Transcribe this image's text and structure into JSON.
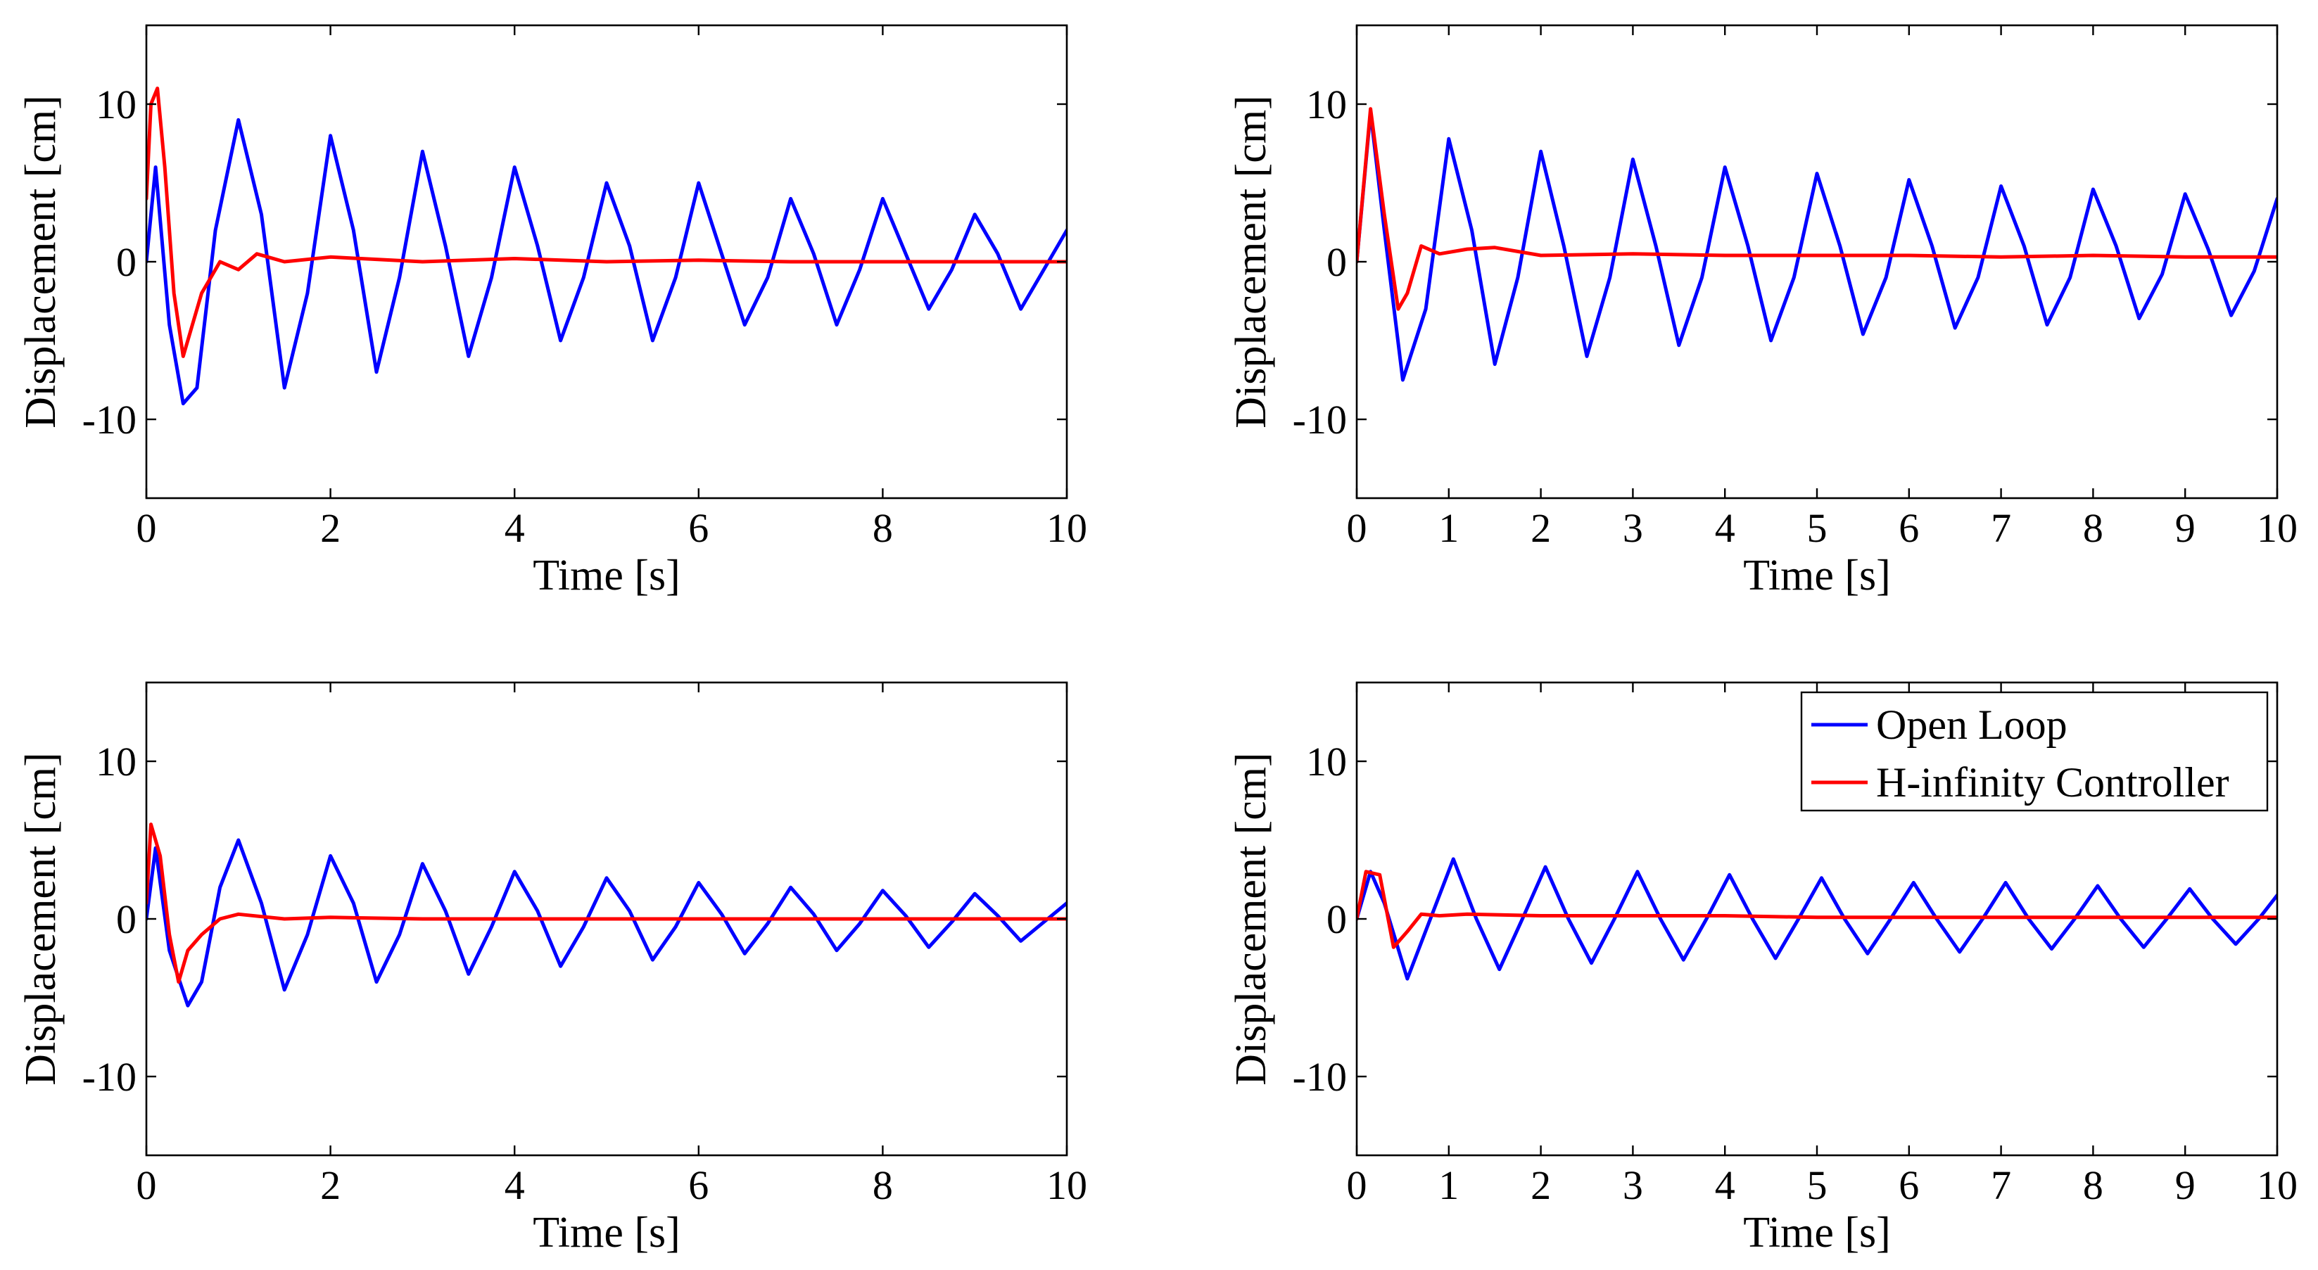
{
  "chart_data": [
    {
      "type": "line",
      "panel": "top-left",
      "xlabel": "Time [s]",
      "ylabel": "Displacement [cm]",
      "xlim": [
        0,
        10
      ],
      "ylim": [
        -15,
        15
      ],
      "xticks": [
        0,
        2,
        4,
        6,
        8,
        10
      ],
      "xtick_labels": [
        "0",
        "2",
        "4",
        "6",
        "8",
        "10"
      ],
      "yticks": [
        -10,
        0,
        10
      ],
      "ytick_labels": [
        "-10",
        "0",
        "10"
      ],
      "series": [
        {
          "name": "Open Loop",
          "color": "#0000ff",
          "x": [
            0,
            0.1,
            0.25,
            0.4,
            0.55,
            0.75,
            1.0,
            1.25,
            1.5,
            1.75,
            2.0,
            2.25,
            2.5,
            2.75,
            3.0,
            3.25,
            3.5,
            3.75,
            4.0,
            4.25,
            4.5,
            4.75,
            5.0,
            5.25,
            5.5,
            5.75,
            6.0,
            6.25,
            6.5,
            6.75,
            7.0,
            7.25,
            7.5,
            7.75,
            8.0,
            8.25,
            8.5,
            8.75,
            9.0,
            9.25,
            9.5,
            9.75,
            10.0
          ],
          "values": [
            0,
            6,
            -4,
            -9,
            -8,
            2,
            9,
            3,
            -8,
            -2,
            8,
            2,
            -7,
            -1,
            7,
            1,
            -6,
            -1,
            6,
            1,
            -5,
            -1,
            5,
            1,
            -5,
            -1,
            5,
            0.5,
            -4,
            -1,
            4,
            0.5,
            -4,
            -0.5,
            4,
            0.5,
            -3,
            -0.5,
            3,
            0.5,
            -3,
            -0.5,
            2
          ]
        },
        {
          "name": "H-infinity Controller",
          "color": "#ff0000",
          "x": [
            0,
            0.05,
            0.12,
            0.2,
            0.3,
            0.4,
            0.5,
            0.6,
            0.7,
            0.8,
            1.0,
            1.2,
            1.5,
            2.0,
            3.0,
            4.0,
            5.0,
            6.0,
            7.0,
            8.0,
            9.0,
            10.0
          ],
          "values": [
            4,
            10,
            11,
            6,
            -2,
            -6,
            -4,
            -2,
            -1,
            0,
            -0.5,
            0.5,
            0,
            0.3,
            0,
            0.2,
            0,
            0.1,
            0,
            0,
            0,
            0
          ]
        }
      ]
    },
    {
      "type": "line",
      "panel": "top-right",
      "xlabel": "Time [s]",
      "ylabel": "Displacement [cm]",
      "xlim": [
        0,
        10
      ],
      "ylim": [
        -15,
        15
      ],
      "xticks": [
        0,
        1,
        2,
        3,
        4,
        5,
        6,
        7,
        8,
        9,
        10
      ],
      "xtick_labels": [
        "0",
        "1",
        "2",
        "3",
        "4",
        "5",
        "6",
        "7",
        "8",
        "9",
        "10"
      ],
      "yticks": [
        -10,
        0,
        10
      ],
      "ytick_labels": [
        "-10",
        "0",
        "10"
      ],
      "series": [
        {
          "name": "Open Loop",
          "color": "#0000ff",
          "x": [
            0,
            0.15,
            0.3,
            0.5,
            0.75,
            1.0,
            1.25,
            1.5,
            1.75,
            2.0,
            2.25,
            2.5,
            2.75,
            3.0,
            3.25,
            3.5,
            3.75,
            4.0,
            4.25,
            4.5,
            4.75,
            5.0,
            5.25,
            5.5,
            5.75,
            6.0,
            6.25,
            6.5,
            6.75,
            7.0,
            7.25,
            7.5,
            7.75,
            8.0,
            8.25,
            8.5,
            8.75,
            9.0,
            9.25,
            9.5,
            9.75,
            10.0
          ],
          "values": [
            0,
            9.5,
            2,
            -7.5,
            -3,
            7.8,
            2,
            -6.5,
            -1,
            7,
            1,
            -6,
            -1,
            6.5,
            1,
            -5.3,
            -1,
            6,
            1,
            -5,
            -1,
            5.6,
            1,
            -4.6,
            -1,
            5.2,
            1,
            -4.2,
            -1,
            4.8,
            1,
            -4,
            -1,
            4.6,
            1,
            -3.6,
            -0.8,
            4.3,
            0.8,
            -3.4,
            -0.6,
            4
          ]
        },
        {
          "name": "H-infinity Controller",
          "color": "#ff0000",
          "x": [
            0,
            0.15,
            0.3,
            0.45,
            0.55,
            0.7,
            0.9,
            1.2,
            1.5,
            2.0,
            3.0,
            4.0,
            5.0,
            6.0,
            7.0,
            8.0,
            9.0,
            10.0
          ],
          "values": [
            0,
            9.7,
            3,
            -3,
            -2,
            1,
            0.5,
            0.8,
            0.9,
            0.4,
            0.5,
            0.4,
            0.4,
            0.4,
            0.3,
            0.4,
            0.3,
            0.3
          ]
        }
      ]
    },
    {
      "type": "line",
      "panel": "bottom-left",
      "xlabel": "Time [s]",
      "ylabel": "Displacement [cm]",
      "xlim": [
        0,
        10
      ],
      "ylim": [
        -15,
        15
      ],
      "xticks": [
        0,
        2,
        4,
        6,
        8,
        10
      ],
      "xtick_labels": [
        "0",
        "2",
        "4",
        "6",
        "8",
        "10"
      ],
      "yticks": [
        -10,
        0,
        10
      ],
      "ytick_labels": [
        "-10",
        "0",
        "10"
      ],
      "series": [
        {
          "name": "Open Loop",
          "color": "#0000ff",
          "x": [
            0,
            0.1,
            0.25,
            0.45,
            0.6,
            0.8,
            1.0,
            1.25,
            1.5,
            1.75,
            2.0,
            2.25,
            2.5,
            2.75,
            3.0,
            3.25,
            3.5,
            3.75,
            4.0,
            4.25,
            4.5,
            4.75,
            5.0,
            5.25,
            5.5,
            5.75,
            6.0,
            6.25,
            6.5,
            6.75,
            7.0,
            7.25,
            7.5,
            7.75,
            8.0,
            8.25,
            8.5,
            8.75,
            9.0,
            9.25,
            9.5,
            9.75,
            10.0
          ],
          "values": [
            0,
            4.5,
            -2,
            -5.5,
            -4,
            2,
            5,
            1,
            -4.5,
            -1,
            4,
            1,
            -4,
            -1,
            3.5,
            0.5,
            -3.5,
            -0.5,
            3,
            0.5,
            -3,
            -0.5,
            2.6,
            0.5,
            -2.6,
            -0.5,
            2.3,
            0.3,
            -2.2,
            -0.3,
            2,
            0.3,
            -2,
            -0.3,
            1.8,
            0.2,
            -1.8,
            -0.2,
            1.6,
            0.2,
            -1.4,
            -0.2,
            1
          ]
        },
        {
          "name": "H-infinity Controller",
          "color": "#ff0000",
          "x": [
            0,
            0.05,
            0.15,
            0.25,
            0.35,
            0.45,
            0.6,
            0.8,
            1.0,
            1.5,
            2.0,
            3.0,
            4.0,
            5.0,
            6.0,
            7.0,
            8.0,
            9.0,
            10.0
          ],
          "values": [
            1,
            6,
            4,
            -1,
            -4,
            -2,
            -1,
            0,
            0.3,
            0,
            0.1,
            0,
            0,
            0,
            0,
            0,
            0,
            0,
            0
          ]
        }
      ]
    },
    {
      "type": "line",
      "panel": "bottom-right",
      "xlabel": "Time [s]",
      "ylabel": "Displacement [cm]",
      "xlim": [
        0,
        10
      ],
      "ylim": [
        -15,
        15
      ],
      "xticks": [
        0,
        1,
        2,
        3,
        4,
        5,
        6,
        7,
        8,
        9,
        10
      ],
      "xtick_labels": [
        "0",
        "1",
        "2",
        "3",
        "4",
        "5",
        "6",
        "7",
        "8",
        "9",
        "10"
      ],
      "yticks": [
        -10,
        0,
        10
      ],
      "ytick_labels": [
        "-10",
        "0",
        "10"
      ],
      "legend": {
        "placement": "top-right",
        "entries": [
          "Open Loop",
          "H-infinity Controller"
        ]
      },
      "series": [
        {
          "name": "Open Loop",
          "color": "#0000ff",
          "x": [
            0,
            0.15,
            0.3,
            0.55,
            0.8,
            1.05,
            1.3,
            1.55,
            1.8,
            2.05,
            2.3,
            2.55,
            2.8,
            3.05,
            3.3,
            3.55,
            3.8,
            4.05,
            4.3,
            4.55,
            4.8,
            5.05,
            5.3,
            5.55,
            5.8,
            6.05,
            6.3,
            6.55,
            6.8,
            7.05,
            7.3,
            7.55,
            7.8,
            8.05,
            8.3,
            8.55,
            8.8,
            9.05,
            9.3,
            9.55,
            9.8,
            10.0
          ],
          "values": [
            0,
            3,
            1,
            -3.8,
            0,
            3.8,
            0,
            -3.2,
            0,
            3.3,
            0,
            -2.8,
            0,
            3,
            0,
            -2.6,
            0,
            2.8,
            0,
            -2.5,
            0,
            2.6,
            0,
            -2.2,
            0,
            2.3,
            0,
            -2.1,
            0,
            2.3,
            0,
            -1.9,
            0,
            2.1,
            0,
            -1.8,
            0,
            1.9,
            0,
            -1.6,
            0,
            1.5
          ]
        },
        {
          "name": "H-infinity Controller",
          "color": "#ff0000",
          "x": [
            0,
            0.1,
            0.25,
            0.4,
            0.55,
            0.7,
            0.9,
            1.2,
            2.0,
            3.0,
            4.0,
            5.0,
            6.0,
            7.0,
            8.0,
            9.0,
            10.0
          ],
          "values": [
            0,
            3,
            2.8,
            -1.8,
            -0.8,
            0.3,
            0.2,
            0.3,
            0.2,
            0.2,
            0.2,
            0.1,
            0.1,
            0.1,
            0.1,
            0.1,
            0.1
          ]
        }
      ]
    }
  ]
}
